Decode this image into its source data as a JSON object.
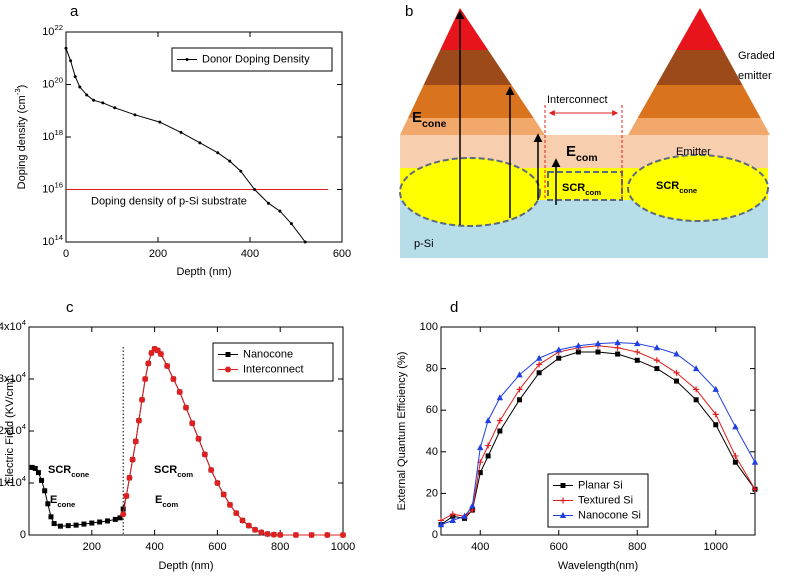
{
  "chart_data": [
    {
      "type": "line",
      "panel_label": "a",
      "xlabel": "Depth (nm)",
      "ylabel": "Doping density (cm^{-3})",
      "xlim": [
        0,
        600
      ],
      "xticks": [
        0,
        200,
        400,
        600
      ],
      "yscale": "log",
      "ylim": [
        100000000000000.0,
        1e+22
      ],
      "yticks": [
        {
          "value": 100000000000000.0,
          "label": "10^{14}"
        },
        {
          "value": 1e+16,
          "label": "10^{16}"
        },
        {
          "value": 1e+18,
          "label": "10^{18}"
        },
        {
          "value": 1e+20,
          "label": "10^{20}"
        },
        {
          "value": 1e+22,
          "label": "10^{22}"
        }
      ],
      "legend": "upper right",
      "series": [
        {
          "name": "Donor Doping Density",
          "color": "#000000",
          "marker": "dot",
          "x": [
            0,
            10,
            20,
            30,
            45,
            60,
            80,
            106,
            150,
            204,
            250,
            291,
            330,
            356,
            380,
            410,
            440,
            465,
            490,
            520
          ],
          "values": [
            2.4e+21,
            8e+20,
            2e+20,
            8e+19,
            4e+19,
            2.5e+19,
            2e+19,
            1.3e+19,
            7e+18,
            3.7e+18,
            1.5e+18,
            6e+17,
            2.5e+17,
            1.2e+17,
            5e+16,
            1e+16,
            3000000000000000.0,
            1500000000000000.0,
            500000000000000.0,
            100000000000000.0
          ]
        }
      ],
      "hline": {
        "value": 1e+16,
        "label": "Doping density of p-Si substrate",
        "color": "#e02020"
      }
    },
    {
      "type": "line",
      "panel_label": "c",
      "xlabel": "Depth (nm)",
      "ylabel": "Electric Field (KV/cm)",
      "xlim": [
        0,
        1000
      ],
      "xticks": [
        200,
        400,
        600,
        800,
        1000
      ],
      "ylim": [
        0,
        40000
      ],
      "yticks": [
        0,
        {
          "value": 10000,
          "label": "1x10^{4}"
        },
        {
          "value": 20000,
          "label": "2x10^{4}"
        },
        {
          "value": 30000,
          "label": "3x10^{4}"
        },
        {
          "value": 40000,
          "label": "4x10^{4}"
        }
      ],
      "legend": "upper right",
      "vline": 300,
      "annotations": [
        "SCR_{cone}",
        "E_{cone}",
        "SCR_{com}",
        "E_{com}"
      ],
      "series": [
        {
          "name": "Nanocone",
          "color": "#000000",
          "marker": "square",
          "x": [
            10,
            20,
            30,
            40,
            50,
            60,
            70,
            80,
            100,
            125,
            150,
            175,
            200,
            225,
            250,
            275,
            290,
            300,
            310,
            320,
            330,
            340,
            350,
            360,
            370,
            380,
            390,
            400,
            410,
            420,
            440,
            460,
            480,
            500,
            520,
            540,
            560,
            580,
            600,
            620,
            640,
            660,
            680,
            700,
            720,
            740,
            760,
            780,
            800,
            850,
            900,
            950,
            1000
          ],
          "values": [
            13000,
            12800,
            12000,
            10500,
            8500,
            6000,
            3500,
            2200,
            1700,
            1800,
            1900,
            2100,
            2300,
            2500,
            2700,
            3000,
            3300,
            5000,
            7500,
            11000,
            14500,
            18000,
            22000,
            26000,
            30000,
            33000,
            35000,
            35800,
            35500,
            34800,
            32500,
            30000,
            27500,
            24500,
            21500,
            18500,
            15500,
            12500,
            10000,
            7800,
            5800,
            4200,
            2800,
            1800,
            1000,
            500,
            200,
            80,
            20,
            0,
            0,
            0,
            0
          ]
        },
        {
          "name": "Interconnect",
          "color": "#e02020",
          "marker": "circle",
          "x": [
            300,
            310,
            320,
            330,
            340,
            350,
            360,
            370,
            380,
            390,
            400,
            410,
            420,
            440,
            460,
            480,
            500,
            520,
            540,
            560,
            580,
            600,
            620,
            640,
            660,
            680,
            700,
            720,
            740,
            760,
            780,
            800,
            850,
            900,
            950,
            1000
          ],
          "values": [
            4000,
            7500,
            11000,
            14500,
            18000,
            22000,
            26000,
            30000,
            33000,
            35000,
            35800,
            35500,
            34800,
            32500,
            30000,
            27500,
            24500,
            21500,
            18500,
            15500,
            12500,
            10000,
            7800,
            5800,
            4200,
            2800,
            1800,
            1000,
            500,
            200,
            80,
            20,
            0,
            0,
            0,
            0
          ]
        }
      ]
    },
    {
      "type": "line",
      "panel_label": "d",
      "xlabel": "Wavelength(nm)",
      "ylabel": "External Quantum Efficiency (%)",
      "xlim": [
        300,
        1100
      ],
      "xticks": [
        400,
        600,
        800,
        1000
      ],
      "ylim": [
        0,
        100
      ],
      "yticks": [
        0,
        20,
        40,
        60,
        80,
        100
      ],
      "legend": "lower center",
      "series": [
        {
          "name": "Planar Si",
          "color": "#000000",
          "marker": "square",
          "x": [
            300,
            330,
            360,
            380,
            400,
            420,
            450,
            500,
            550,
            600,
            650,
            700,
            750,
            800,
            850,
            900,
            950,
            1000,
            1050,
            1100
          ],
          "values": [
            5,
            9,
            8,
            12,
            30,
            38,
            50,
            65,
            78,
            85,
            88,
            88,
            87,
            84,
            80,
            74,
            65,
            53,
            35,
            22
          ]
        },
        {
          "name": "Textured Si",
          "color": "#e02020",
          "marker": "plus",
          "x": [
            300,
            330,
            360,
            380,
            400,
            420,
            450,
            500,
            550,
            600,
            650,
            700,
            750,
            800,
            850,
            900,
            950,
            1000,
            1050,
            1100
          ],
          "values": [
            7,
            10,
            9,
            12,
            35,
            43,
            55,
            70,
            82,
            88,
            90,
            91,
            90,
            88,
            84,
            78,
            70,
            58,
            38,
            22
          ]
        },
        {
          "name": "Nanocone Si",
          "color": "#1f3fe0",
          "marker": "triangle",
          "x": [
            300,
            330,
            360,
            380,
            400,
            420,
            450,
            500,
            550,
            600,
            650,
            700,
            750,
            800,
            850,
            900,
            950,
            1000,
            1050,
            1100
          ],
          "values": [
            5,
            7,
            9,
            14,
            42,
            55,
            66,
            77,
            85,
            89,
            91,
            92,
            92.5,
            92,
            90,
            87,
            80,
            70,
            52,
            35
          ]
        }
      ]
    }
  ],
  "diagram": {
    "panel_label": "b",
    "graded": "Graded",
    "emitter_top": "emitter",
    "interconnect": "Interconnect",
    "e_cone": "E_{cone}",
    "e_com": "E_{com}",
    "emitter": "Emitter",
    "scr_com": "SCR_{com}",
    "scr_cone": "SCR_{cone}",
    "psi": "p-Si"
  }
}
